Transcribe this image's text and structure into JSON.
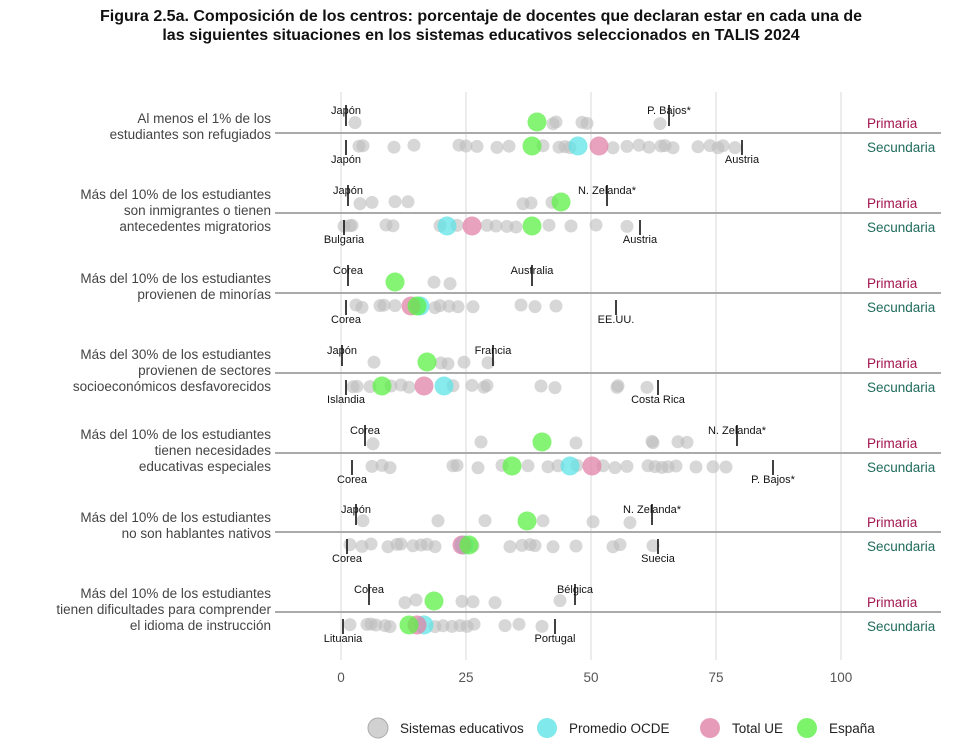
{
  "chart_data": {
    "type": "scatter",
    "title_lines": [
      "Figura 2.5a. Composición de los centros: porcentaje de docentes que declaran estar en cada una de",
      "las siguientes situaciones en los sistemas educativos seleccionados en TALIS 2024"
    ],
    "xlim": [
      0,
      100
    ],
    "x_ticks": [
      "0",
      "25",
      "50",
      "75",
      "100"
    ],
    "grid": true,
    "legend_position": "bottom",
    "level_labels": {
      "primaria": "Primaria",
      "secundaria": "Secundaria"
    },
    "colors": {
      "sistemas": "#bdbdbd",
      "ocde": "#5fe3e6",
      "ue": "#e083a8",
      "espana": "#5cf046",
      "primaria": "#a3154f",
      "secundaria": "#1f6b5c"
    },
    "legend": [
      {
        "key": "sistemas",
        "name": "Sistemas educativos"
      },
      {
        "key": "ocde",
        "name": "Promedio OCDE"
      },
      {
        "key": "ue",
        "name": "Total UE"
      },
      {
        "key": "espana",
        "name": "España"
      }
    ],
    "rows": [
      {
        "label": [
          "Al menos el 1% de los",
          "estudiantes son refugiados"
        ],
        "primaria": {
          "min": {
            "country": "Japón",
            "value": 1
          },
          "max": {
            "country": "P. Bajos*",
            "value": 65.6
          },
          "systems": [
            2.8,
            43,
            42.4,
            48.2,
            49.2,
            63.8
          ],
          "espana": 39.2
        },
        "secundaria": {
          "min": {
            "country": "Japón",
            "value": 1
          },
          "max": {
            "country": "Austria",
            "value": 80.2
          },
          "systems": [
            3.6,
            4.4,
            10.6,
            14.6,
            23.6,
            25,
            27.2,
            31.2,
            33.6,
            40.4,
            43.6,
            44.8,
            45.8,
            54.4,
            57.2,
            59.6,
            61.6,
            64,
            64.8,
            66.4,
            71.4,
            73.8,
            75.4,
            76.4,
            78.8
          ],
          "ocde": 47.4,
          "ue": 51.6,
          "espana": 38.2
        }
      },
      {
        "label": [
          "Más del 10% de los estudiantes",
          "son inmigrantes o tienen",
          "antecedentes migratorios"
        ],
        "primaria": {
          "min": {
            "country": "Japón",
            "value": 1.4
          },
          "max": {
            "country": "N. Zelanda*",
            "value": 53.2
          },
          "systems": [
            3.8,
            6.2,
            10.8,
            13.4,
            36.4,
            38,
            42.2
          ],
          "espana": 44
        },
        "secundaria": {
          "min": {
            "country": "Bulgaria",
            "value": 0.6
          },
          "max": {
            "country": "Austria",
            "value": 59.8
          },
          "systems": [
            0.6,
            1.8,
            2.2,
            9,
            10.4,
            19.8,
            23.2,
            29.2,
            31,
            33.2,
            35,
            41.6,
            46,
            51,
            57.2
          ],
          "ocde": 21.2,
          "ue": 26.2,
          "espana": 38.2
        }
      },
      {
        "label": [
          "Más del 10% de los estudiantes",
          "provienen de minorías"
        ],
        "primaria": {
          "min": {
            "country": "Corea",
            "value": 1.4
          },
          "max": {
            "country": "Australia",
            "value": 38.2
          },
          "systems": [
            18.6,
            21.8
          ],
          "espana": 10.8
        },
        "secundaria": {
          "min": {
            "country": "Corea",
            "value": 1
          },
          "max": {
            "country": "EE.UU.",
            "value": 55
          },
          "systems": [
            3,
            4.2,
            7.8,
            8.6,
            10.8,
            18.8,
            19.8,
            21.6,
            23.4,
            26.4,
            36,
            38.8,
            43
          ],
          "ocde": 15.8,
          "ue": 14,
          "espana": 15.2
        }
      },
      {
        "label": [
          "Más del 30% de los estudiantes",
          "provienen de sectores",
          "socioeconómicos desfavorecidos"
        ],
        "primaria": {
          "min": {
            "country": "Japón",
            "value": 0.2
          },
          "max": {
            "country": "Francia",
            "value": 30.4
          },
          "systems": [
            6.6,
            20,
            21.4,
            24.6,
            29.4
          ],
          "espana": 17.2
        },
        "secundaria": {
          "min": {
            "country": "Islandia",
            "value": 1
          },
          "max": {
            "country": "Costa Rica",
            "value": 63.4
          },
          "systems": [
            2.4,
            3.2,
            5.8,
            10,
            12,
            13.6,
            22.4,
            26.2,
            28.6,
            29.2,
            40,
            42.8,
            55.2,
            55.4,
            61.2
          ],
          "ocde": 20.6,
          "ue": 16.6,
          "espana": 8.2
        }
      },
      {
        "label": [
          "Más del 10% de los estudiantes",
          "tienen necesidades",
          "educativas especiales"
        ],
        "primaria": {
          "min": {
            "country": "Corea",
            "value": 4.8
          },
          "max": {
            "country": "N. Zelanda*",
            "value": 79.2
          },
          "systems": [
            6.4,
            28,
            47,
            62.2,
            62.4,
            67.4,
            69.2
          ],
          "espana": 40.2
        },
        "secundaria": {
          "min": {
            "country": "Corea",
            "value": 2.2
          },
          "max": {
            "country": "P. Bajos*",
            "value": 86.4
          },
          "systems": [
            6.2,
            8.2,
            9.8,
            22.4,
            23.2,
            27.4,
            32.2,
            37.4,
            41.4,
            43.4,
            47.2,
            52.4,
            54.8,
            57.2,
            61.4,
            62.8,
            64.2,
            65.4,
            67,
            71,
            74.4,
            77
          ],
          "ocde": 45.8,
          "ue": 50.2,
          "espana": 34.2
        }
      },
      {
        "label": [
          "Más del 10% de los estudiantes",
          "no son hablantes nativos"
        ],
        "primaria": {
          "min": {
            "country": "Japón",
            "value": 3
          },
          "max": {
            "country": "N. Zelanda*",
            "value": 62.2
          },
          "systems": [
            4.4,
            19.4,
            28.8,
            40.4,
            50.4,
            57.8
          ],
          "espana": 37.2
        },
        "secundaria": {
          "min": {
            "country": "Corea",
            "value": 1.2
          },
          "max": {
            "country": "Suecia",
            "value": 63.4
          },
          "systems": [
            1.8,
            4.2,
            6,
            9.4,
            11.2,
            12,
            14.4,
            16,
            17.2,
            18.8,
            26.4,
            33.8,
            36.2,
            37.8,
            38.8,
            42.4,
            47,
            54.4,
            55.8,
            62.4
          ],
          "ocde": 24.6,
          "ue": 24.2,
          "espana": 25.6
        }
      },
      {
        "label": [
          "Más del 10% de los estudiantes",
          "tienen dificultades para comprender",
          "el idioma de instrucción"
        ],
        "primaria": {
          "min": {
            "country": "Corea",
            "value": 5.6
          },
          "max": {
            "country": "Bélgica",
            "value": 46.8
          },
          "systems": [
            12.8,
            15,
            24.2,
            26.4,
            30.8,
            43.8
          ],
          "espana": 18.6
        },
        "secundaria": {
          "min": {
            "country": "Lituania",
            "value": 0.4
          },
          "max": {
            "country": "Portugal",
            "value": 42.8
          },
          "systems": [
            1.8,
            5.2,
            6,
            7,
            8.8,
            9.8,
            18.8,
            20.4,
            22.2,
            23.8,
            25.2,
            26.6,
            32.8,
            35.6,
            40.2
          ],
          "ocde": 16.6,
          "ue": 15.2,
          "espana": 13.6
        }
      }
    ]
  }
}
